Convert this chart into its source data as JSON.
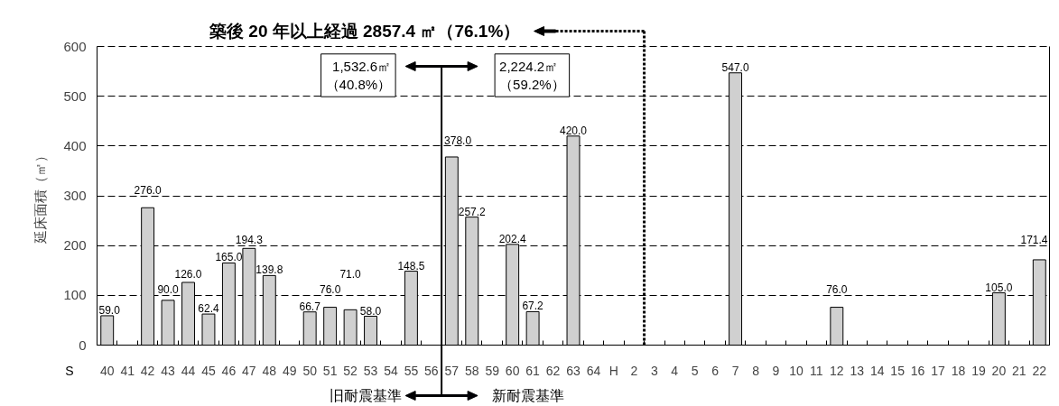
{
  "chart_data": {
    "type": "bar",
    "xlabel": "S",
    "ylabel": "延床面積（㎡）",
    "categories": [
      "40",
      "41",
      "42",
      "43",
      "44",
      "45",
      "46",
      "47",
      "48",
      "49",
      "50",
      "51",
      "52",
      "53",
      "54",
      "55",
      "56",
      "57",
      "58",
      "59",
      "60",
      "61",
      "62",
      "63",
      "64",
      "H",
      "2",
      "3",
      "4",
      "5",
      "6",
      "7",
      "8",
      "9",
      "10",
      "11",
      "12",
      "13",
      "14",
      "15",
      "16",
      "17",
      "18",
      "19",
      "20",
      "21",
      "22"
    ],
    "values": [
      59.0,
      null,
      276.0,
      90.0,
      126.0,
      62.4,
      165.0,
      194.3,
      139.8,
      null,
      66.7,
      76.0,
      71.0,
      58.0,
      null,
      148.5,
      null,
      378.0,
      257.2,
      null,
      202.4,
      67.2,
      null,
      420.0,
      null,
      null,
      null,
      null,
      null,
      null,
      null,
      547.0,
      null,
      null,
      null,
      null,
      76.0,
      null,
      null,
      null,
      null,
      null,
      null,
      null,
      105.0,
      null,
      171.4
    ],
    "value_labels": [
      "59.0",
      null,
      "276.0",
      "90.0",
      "126.0",
      "62.4",
      "165.0",
      "194.3",
      "139.8",
      null,
      "66.7",
      "76.0",
      "71.0",
      "58.0",
      null,
      "148.5",
      null,
      "378.0",
      "257.2",
      null,
      "202.4",
      "67.2",
      null,
      "420.0",
      null,
      null,
      null,
      null,
      null,
      null,
      null,
      "547.0",
      null,
      null,
      null,
      null,
      "76.0",
      null,
      null,
      null,
      null,
      null,
      null,
      null,
      "105.0",
      null,
      "171.4"
    ],
    "color": "#d0d0d0",
    "ylim": [
      0,
      600
    ],
    "yticks": [
      0,
      100,
      200,
      300,
      400,
      500,
      600
    ],
    "grid": "y",
    "ref_lines": [
      {
        "axis": "x",
        "value": "57",
        "color": "#000000",
        "line_style": "solid"
      },
      {
        "axis": "x",
        "value": "3",
        "color": "#000000",
        "line_style": "dotted",
        "label": "築後 20 年以上経過  2857.4 ㎡（76.1%）"
      }
    ],
    "annotations": [
      "1,532.6㎡（40.8%）",
      "2,224.2㎡（59.2%）",
      "旧耐震基準",
      "新耐震基準"
    ]
  }
}
